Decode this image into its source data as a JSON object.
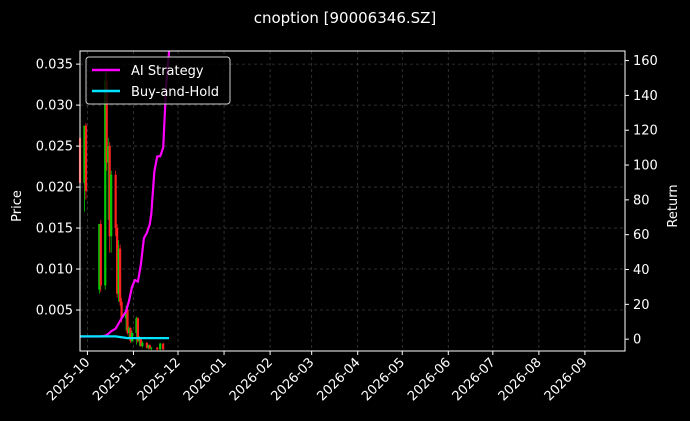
{
  "chart_data": {
    "type": "line",
    "title": "cnoption [90006346.SZ]",
    "xlabel": "",
    "ylabel": "Price",
    "ylabel_right": "Return",
    "grid": true,
    "legend_position": "top-left",
    "x_ticks": [
      "2025-10",
      "2025-11",
      "2025-12",
      "2026-01",
      "2026-02",
      "2026-03",
      "2026-04",
      "2026-05",
      "2026-06",
      "2026-07",
      "2026-08",
      "2026-09"
    ],
    "xlim": [
      "2025-09-26",
      "2026-09-28"
    ],
    "y_left_ticks": [
      "0.005",
      "0.010",
      "0.015",
      "0.020",
      "0.025",
      "0.030",
      "0.035"
    ],
    "ylim_left": [
      0.0,
      0.0366
    ],
    "y_right_ticks": [
      "0",
      "20",
      "40",
      "60",
      "80",
      "100",
      "120",
      "140",
      "160"
    ],
    "ylim_right": [
      -6.8,
      165.5
    ],
    "colors": {
      "up": "#00cc00",
      "down": "#ff2020",
      "ai": "#ff00ff",
      "bh": "#00e5ff",
      "grid": "#3a3a3a"
    },
    "candles": [
      {
        "x": "2025-09-26",
        "o": 0.026,
        "h": 0.0265,
        "l": 0.02,
        "c": 0.0205
      },
      {
        "x": "2025-09-29",
        "o": 0.0205,
        "h": 0.0275,
        "l": 0.017,
        "c": 0.0275
      },
      {
        "x": "2025-09-30",
        "o": 0.0275,
        "h": 0.0278,
        "l": 0.0185,
        "c": 0.0195
      },
      {
        "x": "2025-10-09",
        "o": 0.0075,
        "h": 0.0155,
        "l": 0.007,
        "c": 0.0155
      },
      {
        "x": "2025-10-10",
        "o": 0.0155,
        "h": 0.016,
        "l": 0.0072,
        "c": 0.008
      },
      {
        "x": "2025-10-13",
        "o": 0.008,
        "h": 0.034,
        "l": 0.0075,
        "c": 0.033
      },
      {
        "x": "2025-10-14",
        "o": 0.033,
        "h": 0.0345,
        "l": 0.022,
        "c": 0.023
      },
      {
        "x": "2025-10-15",
        "o": 0.023,
        "h": 0.026,
        "l": 0.016,
        "c": 0.025
      },
      {
        "x": "2025-10-16",
        "o": 0.025,
        "h": 0.0255,
        "l": 0.012,
        "c": 0.014
      },
      {
        "x": "2025-10-17",
        "o": 0.014,
        "h": 0.022,
        "l": 0.012,
        "c": 0.0215
      },
      {
        "x": "2025-10-20",
        "o": 0.0215,
        "h": 0.022,
        "l": 0.014,
        "c": 0.015
      },
      {
        "x": "2025-10-21",
        "o": 0.015,
        "h": 0.0155,
        "l": 0.0065,
        "c": 0.007
      },
      {
        "x": "2025-10-22",
        "o": 0.007,
        "h": 0.0135,
        "l": 0.006,
        "c": 0.0125
      },
      {
        "x": "2025-10-23",
        "o": 0.0125,
        "h": 0.013,
        "l": 0.0055,
        "c": 0.006
      },
      {
        "x": "2025-10-24",
        "o": 0.006,
        "h": 0.0065,
        "l": 0.0035,
        "c": 0.004
      },
      {
        "x": "2025-10-27",
        "o": 0.004,
        "h": 0.0055,
        "l": 0.0025,
        "c": 0.005
      },
      {
        "x": "2025-10-28",
        "o": 0.005,
        "h": 0.0052,
        "l": 0.002,
        "c": 0.0022
      },
      {
        "x": "2025-10-29",
        "o": 0.0022,
        "h": 0.003,
        "l": 0.0015,
        "c": 0.0028
      },
      {
        "x": "2025-10-30",
        "o": 0.0028,
        "h": 0.0029,
        "l": 0.001,
        "c": 0.0012
      },
      {
        "x": "2025-10-31",
        "o": 0.0012,
        "h": 0.0025,
        "l": 0.001,
        "c": 0.0022
      },
      {
        "x": "2025-11-03",
        "o": 0.0022,
        "h": 0.0042,
        "l": 0.0008,
        "c": 0.004
      },
      {
        "x": "2025-11-04",
        "o": 0.004,
        "h": 0.0041,
        "l": 0.001,
        "c": 0.0012
      },
      {
        "x": "2025-11-05",
        "o": 0.0012,
        "h": 0.0018,
        "l": 0.0006,
        "c": 0.0016
      },
      {
        "x": "2025-11-06",
        "o": 0.0016,
        "h": 0.0017,
        "l": 0.0005,
        "c": 0.0006
      },
      {
        "x": "2025-11-07",
        "o": 0.0006,
        "h": 0.0012,
        "l": 0.0004,
        "c": 0.001
      },
      {
        "x": "2025-11-10",
        "o": 0.001,
        "h": 0.0011,
        "l": 0.0003,
        "c": 0.0004
      },
      {
        "x": "2025-11-11",
        "o": 0.0004,
        "h": 0.0008,
        "l": 0.0002,
        "c": 0.0007
      },
      {
        "x": "2025-11-12",
        "o": 0.0007,
        "h": 0.0008,
        "l": 0.0002,
        "c": 0.0003
      },
      {
        "x": "2025-11-13",
        "o": 0.0003,
        "h": 0.0005,
        "l": 0.0001,
        "c": 0.0004
      },
      {
        "x": "2025-11-17",
        "o": 0.0004,
        "h": 0.0005,
        "l": 0.0001,
        "c": 0.0002
      },
      {
        "x": "2025-11-19",
        "o": 0.0002,
        "h": 0.001,
        "l": 0.0001,
        "c": 0.0009
      },
      {
        "x": "2025-11-21",
        "o": 0.0009,
        "h": 0.001,
        "l": 0.0001,
        "c": 0.0002
      }
    ],
    "series": [
      {
        "name": "AI Strategy",
        "axis": "right",
        "x": [
          "2025-09-26",
          "2025-10-03",
          "2025-10-10",
          "2025-10-13",
          "2025-10-15",
          "2025-10-17",
          "2025-10-20",
          "2025-10-22",
          "2025-10-24",
          "2025-10-27",
          "2025-10-29",
          "2025-10-31",
          "2025-11-02",
          "2025-11-04",
          "2025-11-06",
          "2025-11-08",
          "2025-11-10",
          "2025-11-12",
          "2025-11-13",
          "2025-11-15",
          "2025-11-17",
          "2025-11-19",
          "2025-11-21",
          "2025-11-23",
          "2025-11-25"
        ],
        "values": [
          1.5,
          1.5,
          1.5,
          2.0,
          3.0,
          4.5,
          6.0,
          9.0,
          12.0,
          16.0,
          22.0,
          30.0,
          34.0,
          33.0,
          43.0,
          58.0,
          61.0,
          66.0,
          72.0,
          96.0,
          105.0,
          105.0,
          110.0,
          145.0,
          165.5
        ]
      },
      {
        "name": "Buy-and-Hold",
        "axis": "right",
        "x": [
          "2025-09-26",
          "2025-10-10",
          "2025-10-20",
          "2025-10-28",
          "2025-11-05",
          "2025-11-15",
          "2025-11-25"
        ],
        "values": [
          1.6,
          1.6,
          1.6,
          0.6,
          0.6,
          0.6,
          0.6
        ]
      }
    ]
  }
}
